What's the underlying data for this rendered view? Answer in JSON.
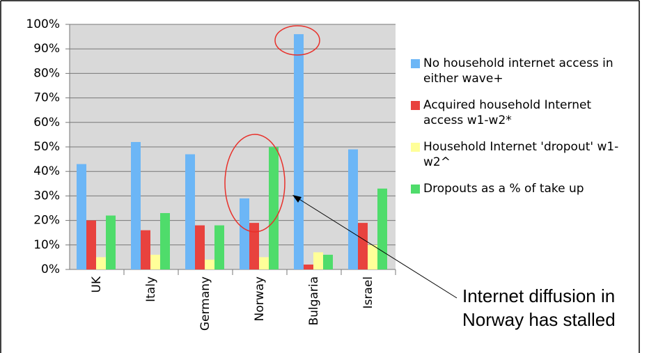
{
  "chart_data": {
    "type": "bar",
    "categories": [
      "UK",
      "Italy",
      "Germany",
      "Norway",
      "Bulgaria",
      "Israel"
    ],
    "series": [
      {
        "name": "No household internet access in either wave+",
        "color": "#6cb6f6",
        "values": [
          43,
          52,
          47,
          29,
          96,
          49
        ]
      },
      {
        "name": "Acquired household Internet access w1-w2*",
        "color": "#e8423e",
        "values": [
          20,
          16,
          18,
          19,
          2,
          19
        ]
      },
      {
        "name": "Household Internet 'dropout' w1-w2^",
        "color": "#ffff99",
        "values": [
          5,
          6,
          4,
          5,
          7,
          10
        ]
      },
      {
        "name": "Dropouts as a % of take up",
        "color": "#4fdc6b",
        "values": [
          22,
          23,
          18,
          50,
          6,
          33
        ]
      }
    ],
    "ylim": [
      0,
      100
    ],
    "yticks": [
      {
        "value": 0,
        "label": "0%"
      },
      {
        "value": 10,
        "label": "10%"
      },
      {
        "value": 20,
        "label": "20%"
      },
      {
        "value": 30,
        "label": "30%"
      },
      {
        "value": 40,
        "label": "40%"
      },
      {
        "value": 50,
        "label": "50%"
      },
      {
        "value": 60,
        "label": "60%"
      },
      {
        "value": 70,
        "label": "70%"
      },
      {
        "value": 80,
        "label": "80%"
      },
      {
        "value": 90,
        "label": "90%"
      },
      {
        "value": 100,
        "label": "100%"
      }
    ],
    "grid": true,
    "annotation": [
      "Internet diffusion in",
      "Norway has stalled"
    ]
  }
}
